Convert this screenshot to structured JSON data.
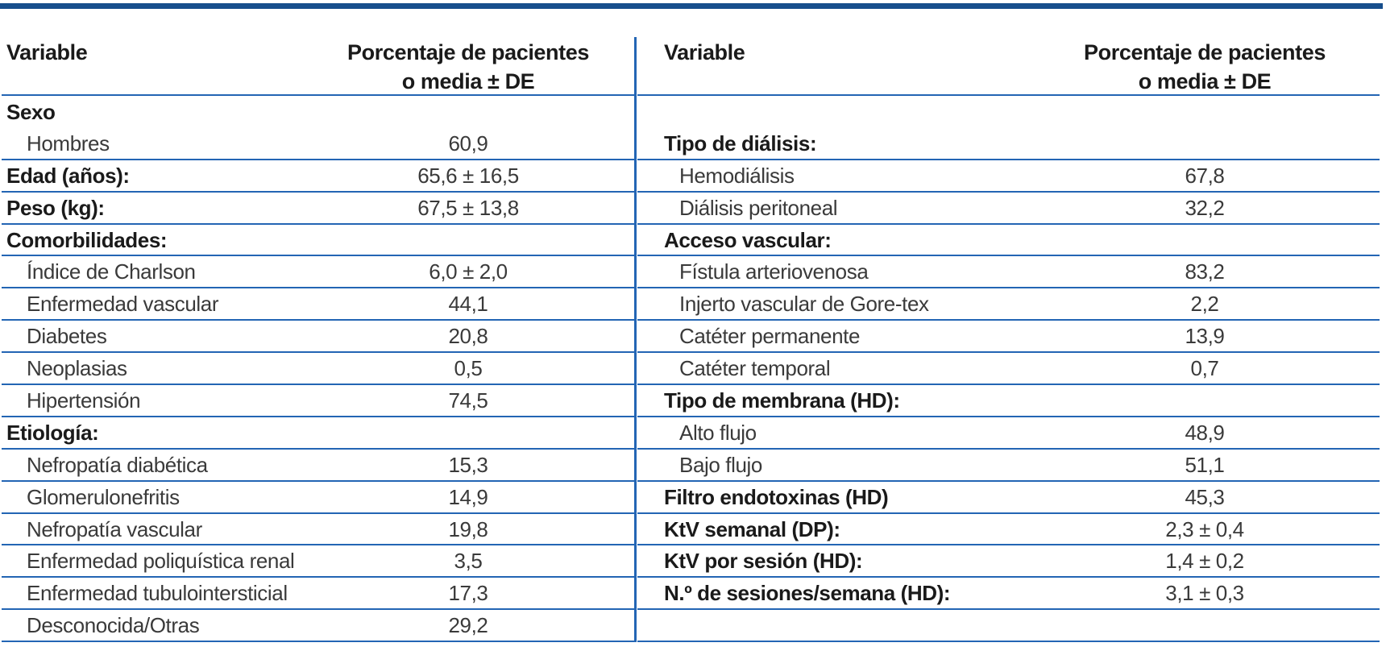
{
  "colors": {
    "rule_blue": "#2365b4",
    "top_bar_navy": "#174e8c",
    "text": "#3a3a3a",
    "text_bold": "#1a1a1a"
  },
  "table": {
    "column_headers": {
      "variable": "Variable",
      "value_line1": "Porcentaje de pacientes",
      "value_line2": "o media ± DE"
    },
    "left": {
      "rows": [
        {
          "label": "Sexo",
          "value": "",
          "bold": true,
          "indent": false,
          "rule_below": false
        },
        {
          "label": "Hombres",
          "value": "60,9",
          "bold": false,
          "indent": true,
          "rule_below": true
        },
        {
          "label": "Edad (años):",
          "value": "65,6 ± 16,5",
          "bold": true,
          "indent": false,
          "rule_below": true
        },
        {
          "label": "Peso (kg):",
          "value": "67,5 ± 13,8",
          "bold": true,
          "indent": false,
          "rule_below": true
        },
        {
          "label": "Comorbilidades:",
          "value": "",
          "bold": true,
          "indent": false,
          "rule_below": true
        },
        {
          "label": "Índice de Charlson",
          "value": "6,0 ± 2,0",
          "bold": false,
          "indent": true,
          "rule_below": true
        },
        {
          "label": "Enfermedad vascular",
          "value": "44,1",
          "bold": false,
          "indent": true,
          "rule_below": true
        },
        {
          "label": "Diabetes",
          "value": "20,8",
          "bold": false,
          "indent": true,
          "rule_below": true
        },
        {
          "label": "Neoplasias",
          "value": "0,5",
          "bold": false,
          "indent": true,
          "rule_below": true
        },
        {
          "label": "Hipertensión",
          "value": "74,5",
          "bold": false,
          "indent": true,
          "rule_below": true
        },
        {
          "label": "Etiología:",
          "value": "",
          "bold": true,
          "indent": false,
          "rule_below": true
        },
        {
          "label": "Nefropatía diabética",
          "value": "15,3",
          "bold": false,
          "indent": true,
          "rule_below": true
        },
        {
          "label": "Glomerulonefritis",
          "value": "14,9",
          "bold": false,
          "indent": true,
          "rule_below": true
        },
        {
          "label": "Nefropatía vascular",
          "value": "19,8",
          "bold": false,
          "indent": true,
          "rule_below": true
        },
        {
          "label": "Enfermedad poliquística renal",
          "value": "3,5",
          "bold": false,
          "indent": true,
          "rule_below": true
        },
        {
          "label": "Enfermedad tubulointersticial",
          "value": "17,3",
          "bold": false,
          "indent": true,
          "rule_below": true
        },
        {
          "label": "Desconocida/Otras",
          "value": "29,2",
          "bold": false,
          "indent": true,
          "rule_below": true
        }
      ]
    },
    "right": {
      "rows": [
        {
          "label": "",
          "value": "",
          "bold": false,
          "indent": false,
          "rule_below": false
        },
        {
          "label": "Tipo de diálisis:",
          "value": "",
          "bold": true,
          "indent": false,
          "rule_below": true
        },
        {
          "label": "Hemodiálisis",
          "value": "67,8",
          "bold": false,
          "indent": true,
          "rule_below": true
        },
        {
          "label": "Diálisis peritoneal",
          "value": "32,2",
          "bold": false,
          "indent": true,
          "rule_below": true
        },
        {
          "label": "Acceso vascular:",
          "value": "",
          "bold": true,
          "indent": false,
          "rule_below": true
        },
        {
          "label": "Fístula arteriovenosa",
          "value": "83,2",
          "bold": false,
          "indent": true,
          "rule_below": true
        },
        {
          "label": "Injerto vascular de Gore-tex",
          "value": "2,2",
          "bold": false,
          "indent": true,
          "rule_below": true
        },
        {
          "label": "Catéter permanente",
          "value": "13,9",
          "bold": false,
          "indent": true,
          "rule_below": true
        },
        {
          "label": "Catéter temporal",
          "value": "0,7",
          "bold": false,
          "indent": true,
          "rule_below": true
        },
        {
          "label": "Tipo de membrana (HD):",
          "value": "",
          "bold": true,
          "indent": false,
          "rule_below": true
        },
        {
          "label": "Alto flujo",
          "value": "48,9",
          "bold": false,
          "indent": true,
          "rule_below": true
        },
        {
          "label": "Bajo flujo",
          "value": "51,1",
          "bold": false,
          "indent": true,
          "rule_below": true
        },
        {
          "label": "Filtro endotoxinas (HD)",
          "value": "45,3",
          "bold": true,
          "indent": false,
          "rule_below": true
        },
        {
          "label": "KtV semanal (DP):",
          "value": "2,3 ± 0,4",
          "bold": true,
          "indent": false,
          "rule_below": true
        },
        {
          "label": "KtV por sesión (HD):",
          "value": "1,4 ± 0,2",
          "bold": true,
          "indent": false,
          "rule_below": true
        },
        {
          "label": "N.º de sesiones/semana (HD):",
          "value": "3,1 ± 0,3",
          "bold": true,
          "indent": false,
          "rule_below": true
        },
        {
          "label": "",
          "value": "",
          "bold": false,
          "indent": false,
          "rule_below": true
        }
      ]
    }
  }
}
